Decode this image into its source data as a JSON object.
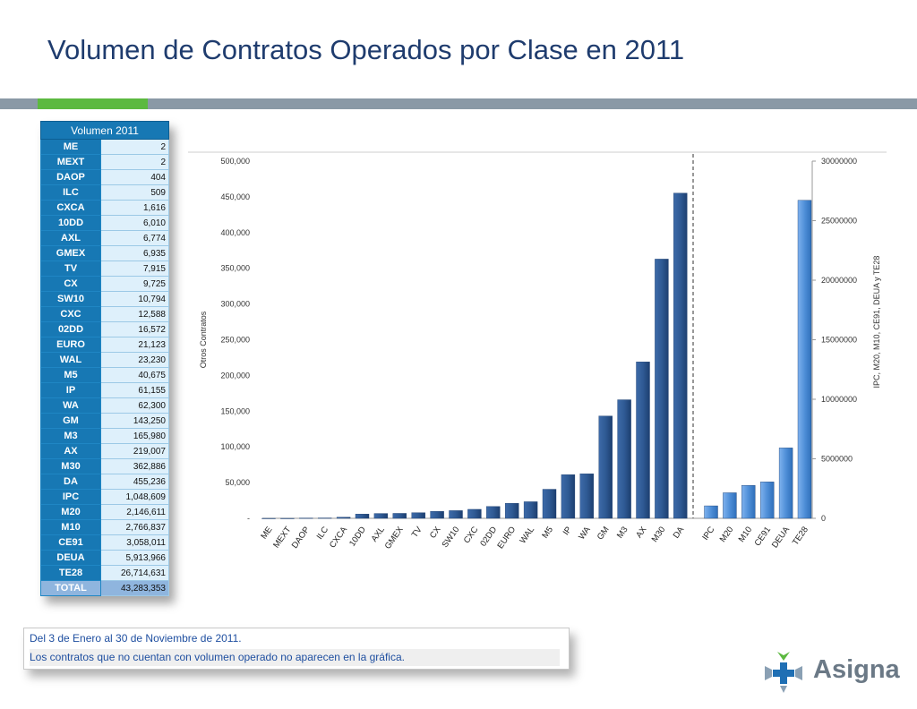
{
  "title": "Volumen de Contratos Operados por Clase en 2011",
  "table": {
    "header": "Volumen 2011",
    "rows": [
      {
        "name": "ME",
        "value": "2"
      },
      {
        "name": "MEXT",
        "value": "2"
      },
      {
        "name": "DAOP",
        "value": "404"
      },
      {
        "name": "ILC",
        "value": "509"
      },
      {
        "name": "CXCA",
        "value": "1,616"
      },
      {
        "name": "10DD",
        "value": "6,010"
      },
      {
        "name": "AXL",
        "value": "6,774"
      },
      {
        "name": "GMEX",
        "value": "6,935"
      },
      {
        "name": "TV",
        "value": "7,915"
      },
      {
        "name": "CX",
        "value": "9,725"
      },
      {
        "name": "SW10",
        "value": "10,794"
      },
      {
        "name": "CXC",
        "value": "12,588"
      },
      {
        "name": "02DD",
        "value": "16,572"
      },
      {
        "name": "EURO",
        "value": "21,123"
      },
      {
        "name": "WAL",
        "value": "23,230"
      },
      {
        "name": "M5",
        "value": "40,675"
      },
      {
        "name": "IP",
        "value": "61,155"
      },
      {
        "name": "WA",
        "value": "62,300"
      },
      {
        "name": "GM",
        "value": "143,250"
      },
      {
        "name": "M3",
        "value": "165,980"
      },
      {
        "name": "AX",
        "value": "219,007"
      },
      {
        "name": "M30",
        "value": "362,886"
      },
      {
        "name": "DA",
        "value": "455,236"
      },
      {
        "name": "IPC",
        "value": "1,048,609"
      },
      {
        "name": "M20",
        "value": "2,146,611"
      },
      {
        "name": "M10",
        "value": "2,766,837"
      },
      {
        "name": "CE91",
        "value": "3,058,011"
      },
      {
        "name": "DEUA",
        "value": "5,913,966"
      },
      {
        "name": "TE28",
        "value": "26,714,631"
      }
    ],
    "total_label": "TOTAL",
    "total_value": "43,283,353"
  },
  "chart_data": {
    "type": "bar",
    "title": "",
    "ylabel_left": "Otros Contratos",
    "ylabel_right": "IPC, M20, M10, CE91, DEUA y TE28",
    "left_axis": {
      "ylim": [
        0,
        500000
      ],
      "ticks": [
        0,
        50000,
        100000,
        150000,
        200000,
        250000,
        300000,
        350000,
        400000,
        450000,
        500000
      ],
      "tick_labels": [
        "-",
        "50,000",
        "100,000",
        "150,000",
        "200,000",
        "250,000",
        "300,000",
        "350,000",
        "400,000",
        "450,000",
        "500,000"
      ]
    },
    "right_axis": {
      "ylim": [
        0,
        30000000
      ],
      "ticks": [
        0,
        5000000,
        10000000,
        15000000,
        20000000,
        25000000,
        30000000
      ],
      "tick_labels": [
        "0",
        "5000000",
        "10000000",
        "15000000",
        "20000000",
        "25000000",
        "30000000"
      ]
    },
    "series": [
      {
        "axis": "left",
        "color": "#2f5a94",
        "categories": [
          "ME",
          "MEXT",
          "DAOP",
          "ILC",
          "CXCA",
          "10DD",
          "AXL",
          "GMEX",
          "TV",
          "CX",
          "SW10",
          "CXC",
          "02DD",
          "EURO",
          "WAL",
          "M5",
          "IP",
          "WA",
          "GM",
          "M3",
          "AX",
          "M30",
          "DA"
        ],
        "values": [
          2,
          2,
          404,
          509,
          1616,
          6010,
          6774,
          6935,
          7915,
          9725,
          10794,
          12588,
          16572,
          21123,
          23230,
          40675,
          61155,
          62300,
          143250,
          165980,
          219007,
          362886,
          455236
        ]
      },
      {
        "axis": "right",
        "color": "#4f8fd8",
        "categories": [
          "IPC",
          "M20",
          "M10",
          "CE91",
          "DEUA",
          "TE28"
        ],
        "values": [
          1048609,
          2146611,
          2766837,
          3058011,
          5913966,
          26714631
        ]
      }
    ],
    "grid": false,
    "legend": "none"
  },
  "notes": {
    "line1": "Del 3 de Enero al 30 de Noviembre de 2011.",
    "line2": "Los contratos que no cuentan con volumen operado no aparecen en la gráfica."
  },
  "logo": {
    "text": "Asigna",
    "icon": "asigna-logo-icon",
    "colors": {
      "green": "#5cb940",
      "blue": "#1f6fb4",
      "gray": "#6b7986"
    }
  }
}
